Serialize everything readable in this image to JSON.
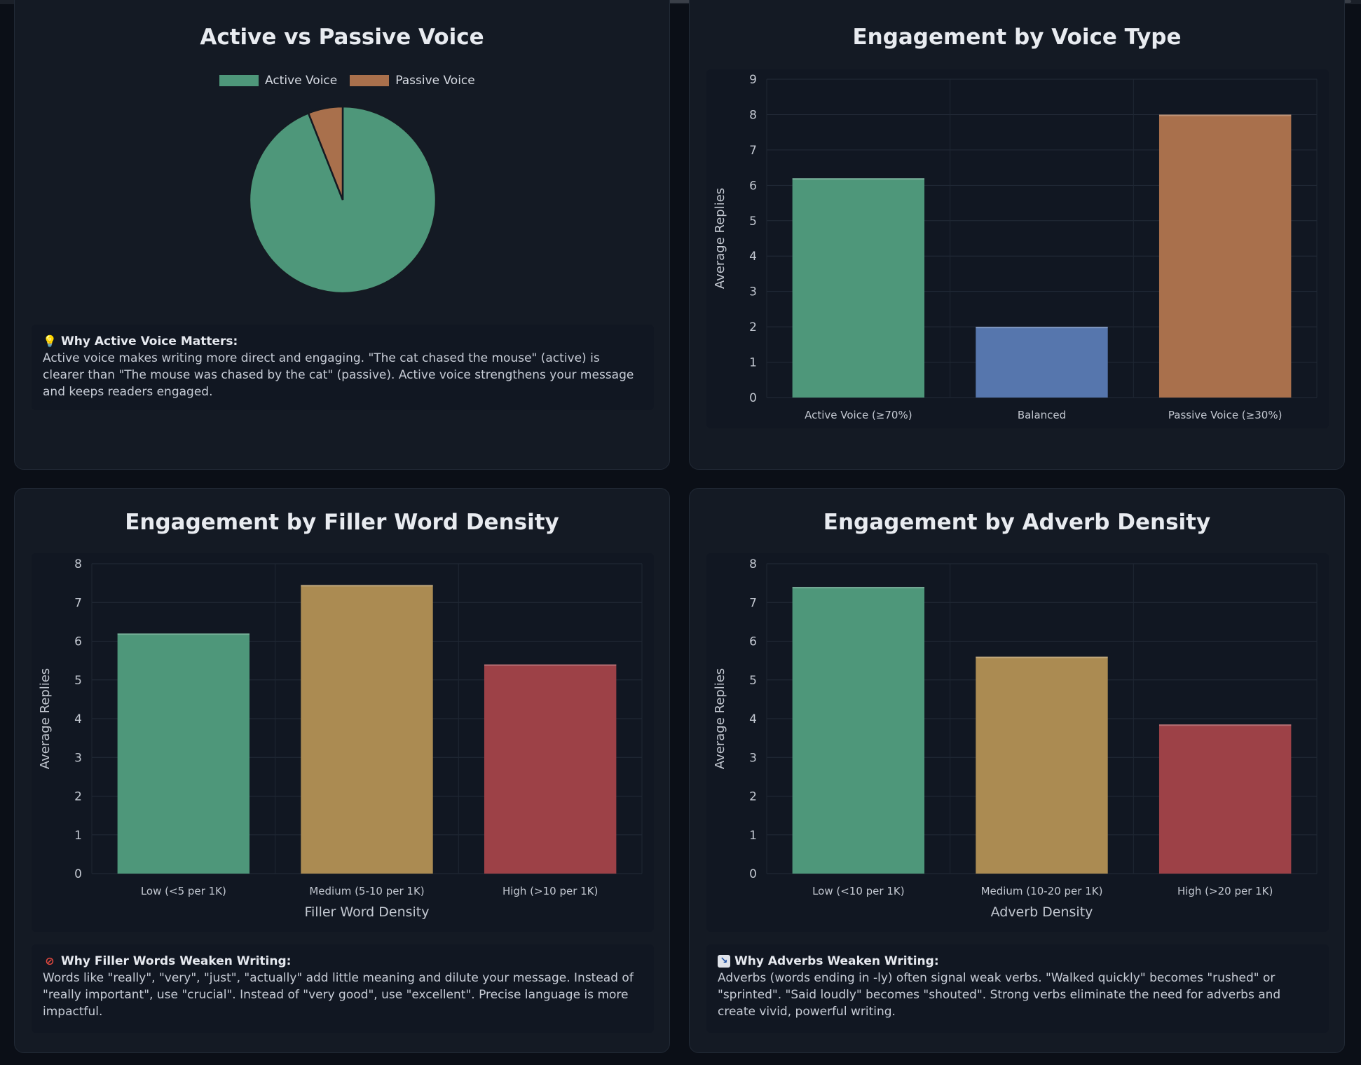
{
  "panels": {
    "voice_pie": {
      "title": "Active vs Passive Voice",
      "legend": [
        "Active Voice",
        "Passive Voice"
      ],
      "note": {
        "icon": "lightbulb-icon",
        "heading": "Why Active Voice Matters:",
        "body": "Active voice makes writing more direct and engaging. \"The cat chased the mouse\" (active) is clearer than \"The mouse was chased by the cat\" (passive). Active voice strengthens your message and keeps readers engaged."
      }
    },
    "voice_bar": {
      "title": "Engagement by Voice Type"
    },
    "filler_bar": {
      "title": "Engagement by Filler Word Density",
      "note": {
        "icon": "prohibited-icon",
        "heading": "Why Filler Words Weaken Writing:",
        "body": "Words like \"really\", \"very\", \"just\", \"actually\" add little meaning and dilute your message. Instead of \"really important\", use \"crucial\". Instead of \"very good\", use \"excellent\". Precise language is more impactful."
      }
    },
    "adverb_bar": {
      "title": "Engagement by Adverb Density",
      "note": {
        "icon": "chart-decreasing-icon",
        "heading": "Why Adverbs Weaken Writing:",
        "body": "Adverbs (words ending in -ly) often signal weak verbs. \"Walked quickly\" becomes \"rushed\" or \"sprinted\". \"Said loudly\" becomes \"shouted\". Strong verbs eliminate the need for adverbs and create vivid, powerful writing."
      }
    }
  },
  "colors": {
    "green": "#4e977a",
    "orange": "#a9704c",
    "blue": "#5676ad",
    "gold": "#ab8b52",
    "red": "#9d4147"
  },
  "chart_data": [
    {
      "type": "pie",
      "title": "Active vs Passive Voice",
      "labels": [
        "Active Voice",
        "Passive Voice"
      ],
      "values": [
        94,
        6
      ],
      "legend_position": "top"
    },
    {
      "type": "bar",
      "title": "Engagement by Voice Type",
      "categories": [
        "Active Voice (≥70%)",
        "Balanced",
        "Passive Voice (≥30%)"
      ],
      "values": [
        6.2,
        2.0,
        8.0
      ],
      "xlabel": "",
      "ylabel": "Average Replies",
      "ylim": [
        0,
        9
      ],
      "grid": true
    },
    {
      "type": "bar",
      "title": "Engagement by Filler Word Density",
      "categories": [
        "Low (<5 per 1K)",
        "Medium (5-10 per 1K)",
        "High (>10 per 1K)"
      ],
      "values": [
        6.2,
        7.45,
        5.4
      ],
      "xlabel": "Filler Word Density",
      "ylabel": "Average Replies",
      "ylim": [
        0,
        8
      ],
      "grid": true
    },
    {
      "type": "bar",
      "title": "Engagement by Adverb Density",
      "categories": [
        "Low (<10 per 1K)",
        "Medium (10-20 per 1K)",
        "High (>20 per 1K)"
      ],
      "values": [
        7.4,
        5.6,
        3.85
      ],
      "xlabel": "Adverb Density",
      "ylabel": "Average Replies",
      "ylim": [
        0,
        8
      ],
      "grid": true
    }
  ]
}
